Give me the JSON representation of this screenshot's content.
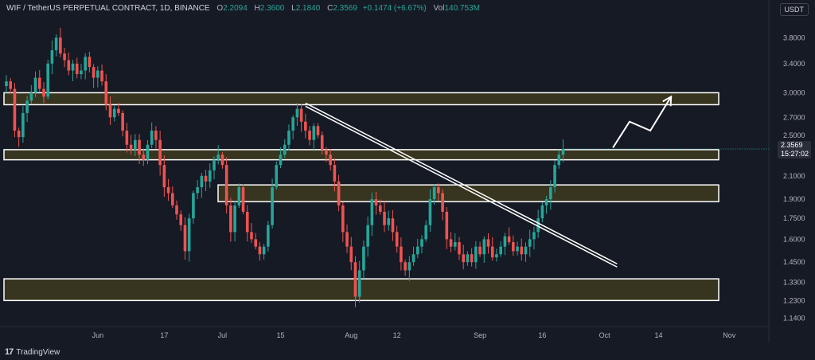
{
  "legend": {
    "symbol": "WIF / TetherUS PERPETUAL CONTRACT, 1D, BINANCE",
    "open_label": "O",
    "open": "2.2094",
    "high_label": "H",
    "high": "2.3600",
    "low_label": "L",
    "low": "2.1840",
    "close_label": "C",
    "close": "2.3569",
    "change": "+0.1474 (+6.67%)",
    "vol_label": "Vol",
    "vol": "140.753M"
  },
  "currency": "USDT",
  "last_price": {
    "price": "2.3569",
    "countdown": "15:27:02"
  },
  "brand": {
    "logo": "17",
    "name": "TradingView"
  },
  "colors": {
    "up": "#26a69a",
    "down": "#ef5350",
    "zone_fill": "#3d3b1e",
    "zone_border": "#ffffff"
  },
  "chart_data": {
    "type": "candlestick",
    "y_scale": "log",
    "ylim": [
      1.1,
      4.2
    ],
    "y_ticks": [
      "3.8000",
      "3.4000",
      "3.0000",
      "2.7000",
      "2.5000",
      "2.3569",
      "2.1000",
      "1.9000",
      "1.7500",
      "1.6000",
      "1.4500",
      "1.3300",
      "1.2300",
      "1.1400"
    ],
    "x_labels": [
      {
        "label": "Jun",
        "day": 22
      },
      {
        "label": "17",
        "day": 38
      },
      {
        "label": "Jul",
        "day": 52
      },
      {
        "label": "15",
        "day": 66
      },
      {
        "label": "Aug",
        "day": 83
      },
      {
        "label": "12",
        "day": 94
      },
      {
        "label": "Sep",
        "day": 114
      },
      {
        "label": "16",
        "day": 129
      },
      {
        "label": "Oct",
        "day": 144
      },
      {
        "label": "14",
        "day": 157
      },
      {
        "label": "Nov",
        "day": 174
      }
    ],
    "closes": [
      3.15,
      3.05,
      2.55,
      2.48,
      2.75,
      2.9,
      3.0,
      3.2,
      3.05,
      2.95,
      3.4,
      3.6,
      3.8,
      3.55,
      3.45,
      3.3,
      3.4,
      3.25,
      3.3,
      3.5,
      3.35,
      3.2,
      3.3,
      3.15,
      2.85,
      2.7,
      2.8,
      2.75,
      2.55,
      2.4,
      2.35,
      2.45,
      2.3,
      2.25,
      2.4,
      2.55,
      2.45,
      2.2,
      2.0,
      1.95,
      1.85,
      1.78,
      1.7,
      1.52,
      1.75,
      1.95,
      2.0,
      2.1,
      2.05,
      2.15,
      2.25,
      2.3,
      2.2,
      1.85,
      1.65,
      1.85,
      2.0,
      1.8,
      1.65,
      1.6,
      1.55,
      1.5,
      1.55,
      1.7,
      2.0,
      2.2,
      2.3,
      2.4,
      2.55,
      2.7,
      2.8,
      2.65,
      2.55,
      2.45,
      2.6,
      2.5,
      2.35,
      2.3,
      2.2,
      2.05,
      1.85,
      1.65,
      1.55,
      1.45,
      1.25,
      1.4,
      1.55,
      1.7,
      1.9,
      1.85,
      1.8,
      1.7,
      1.75,
      1.65,
      1.55,
      1.45,
      1.4,
      1.45,
      1.5,
      1.55,
      1.6,
      1.7,
      1.9,
      2.0,
      1.95,
      1.8,
      1.6,
      1.55,
      1.58,
      1.5,
      1.45,
      1.5,
      1.45,
      1.55,
      1.5,
      1.6,
      1.55,
      1.48,
      1.5,
      1.55,
      1.62,
      1.58,
      1.52,
      1.55,
      1.5,
      1.55,
      1.6,
      1.65,
      1.75,
      1.85,
      1.9,
      2.0,
      2.2,
      2.3,
      2.3569
    ],
    "zones": [
      {
        "low": 2.85,
        "high": 3.0
      },
      {
        "low": 2.25,
        "high": 2.35
      },
      {
        "low": 1.88,
        "high": 2.02
      },
      {
        "low": 1.23,
        "high": 1.35
      }
    ],
    "trendline": [
      {
        "day": 72,
        "price": 2.85
      },
      {
        "day": 147,
        "price": 1.43
      }
    ],
    "projection": [
      {
        "day": 146,
        "price": 2.37
      },
      {
        "day": 150,
        "price": 2.65
      },
      {
        "day": 155,
        "price": 2.55
      },
      {
        "day": 160,
        "price": 2.95
      }
    ]
  }
}
